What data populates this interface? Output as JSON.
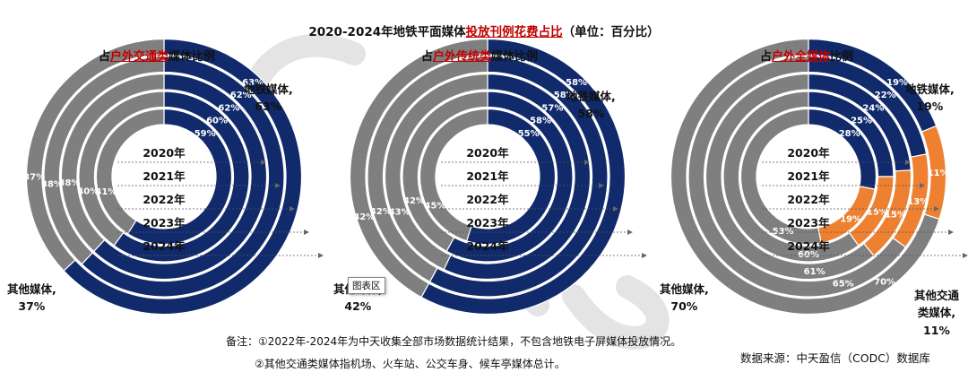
{
  "title": {
    "prefix": "2020-2024年地铁平面媒体",
    "highlight": "投放刊例花费占比",
    "suffix": "（单位：百分比）"
  },
  "colors": {
    "subway": "#102a6b",
    "other": "#7f7f7f",
    "other_transport": "#ed8131",
    "highlight_text": "#c00000"
  },
  "chart_data": [
    {
      "type": "donut",
      "title": {
        "prefix": "占",
        "highlight": "户外交通类",
        "suffix": "媒体比例"
      },
      "rings": [
        "2020年",
        "2021年",
        "2022年",
        "2023年",
        "2024年"
      ],
      "series": [
        {
          "name": "地铁媒体",
          "values": [
            59,
            60,
            62,
            62,
            63
          ]
        },
        {
          "name": "其他媒体",
          "values": [
            41,
            40,
            38,
            38,
            37
          ]
        }
      ],
      "legend_labels": [
        {
          "name": "地铁媒体,",
          "value": "63%"
        },
        {
          "name": "其他媒体,",
          "value": "37%"
        }
      ]
    },
    {
      "type": "donut",
      "title": {
        "prefix": "占",
        "highlight": "户外传统类",
        "suffix": "媒体比例"
      },
      "rings": [
        "2020年",
        "2021年",
        "2022年",
        "2023年",
        "2024年"
      ],
      "series": [
        {
          "name": "地铁媒体",
          "values": [
            55,
            58,
            57,
            58,
            58
          ]
        },
        {
          "name": "其他媒体",
          "values": [
            45,
            42,
            43,
            42,
            42
          ]
        }
      ],
      "legend_labels": [
        {
          "name": "地铁媒体,",
          "value": "58%"
        },
        {
          "name": "其他媒体,",
          "value": "42%"
        }
      ]
    },
    {
      "type": "donut",
      "title": {
        "prefix": "占",
        "highlight": "户外全媒体",
        "suffix": "比例"
      },
      "rings": [
        "2020年",
        "2021年",
        "2022年",
        "2023年",
        "2024年"
      ],
      "series": [
        {
          "name": "地铁媒体",
          "values": [
            28,
            25,
            24,
            22,
            19
          ]
        },
        {
          "name": "其他交通类媒体",
          "values": [
            19,
            15,
            15,
            13,
            11
          ]
        },
        {
          "name": "其他媒体",
          "values": [
            53,
            60,
            61,
            65,
            70
          ]
        }
      ],
      "legend_labels": [
        {
          "name": "地铁媒体,",
          "value": "19%"
        },
        {
          "name": "其他交通类媒体,",
          "value": "11%"
        },
        {
          "name": "其他媒体,",
          "value": "70%"
        }
      ]
    }
  ],
  "notes": [
    "备注：①2022年-2024年为中天收集全部市场数据统计结果，不包含地铁电子屏媒体投放情况。",
    "②其他交通类媒体指机场、火车站、公交车身、候车亭媒体总计。"
  ],
  "source": "数据来源：中天盈信（CODC）数据库",
  "tooltip": "图表区"
}
